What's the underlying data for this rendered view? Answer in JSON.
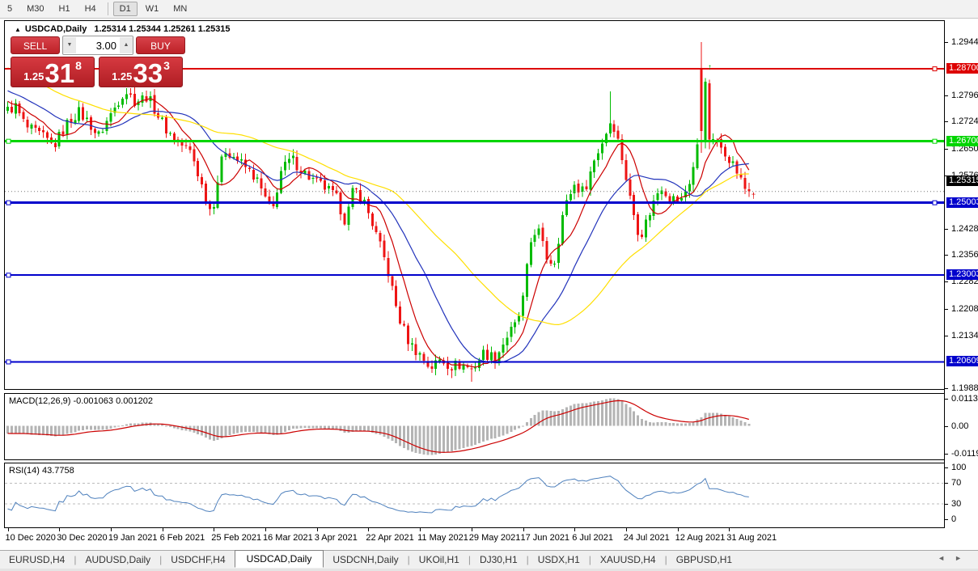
{
  "toolbar": {
    "items": [
      {
        "label": "5"
      },
      {
        "label": "M30"
      },
      {
        "label": "H1"
      },
      {
        "label": "H4"
      },
      {
        "sep": true
      },
      {
        "label": "D1",
        "active": true
      },
      {
        "label": "W1"
      },
      {
        "label": "MN"
      }
    ]
  },
  "header": {
    "collapse_icon": "▲",
    "symbol_title": "USDCAD,Daily",
    "ohlc": "1.25314 1.25344 1.25261 1.25315"
  },
  "trade": {
    "sell_label": "SELL",
    "buy_label": "BUY",
    "volume": "3.00",
    "spinner_down": "▼",
    "spinner_up": "▲",
    "sell_price": {
      "prefix": "1.25",
      "big": "31",
      "sup": "8"
    },
    "buy_price": {
      "prefix": "1.25",
      "big": "33",
      "sup": "3"
    }
  },
  "chart_data": {
    "type": "candlestick",
    "symbol": "USDCAD",
    "timeframe": "Daily",
    "ylim": {
      "top": 1.3002,
      "bottom": 1.1986
    },
    "candle_count": 188,
    "pre_candles": 45,
    "pre_trend": {
      "from": 1.2992,
      "to": 1.2765
    },
    "close_anchors": [
      [
        0.0,
        1.2755
      ],
      [
        0.01,
        1.2768
      ],
      [
        0.025,
        1.2708
      ],
      [
        0.045,
        1.2686
      ],
      [
        0.062,
        1.2656
      ],
      [
        0.08,
        1.2718
      ],
      [
        0.095,
        1.2752
      ],
      [
        0.11,
        1.2722
      ],
      [
        0.122,
        1.2682
      ],
      [
        0.14,
        1.2748
      ],
      [
        0.158,
        1.2812
      ],
      [
        0.172,
        1.278
      ],
      [
        0.188,
        1.2795
      ],
      [
        0.203,
        1.2742
      ],
      [
        0.215,
        1.27
      ],
      [
        0.232,
        1.2665
      ],
      [
        0.248,
        1.2638
      ],
      [
        0.262,
        1.2548
      ],
      [
        0.275,
        1.247
      ],
      [
        0.285,
        1.258
      ],
      [
        0.293,
        1.265
      ],
      [
        0.305,
        1.2628
      ],
      [
        0.32,
        1.26
      ],
      [
        0.335,
        1.2568
      ],
      [
        0.349,
        1.2505
      ],
      [
        0.357,
        1.2472
      ],
      [
        0.368,
        1.2585
      ],
      [
        0.383,
        1.2622
      ],
      [
        0.398,
        1.2588
      ],
      [
        0.413,
        1.256
      ],
      [
        0.428,
        1.2542
      ],
      [
        0.443,
        1.2515
      ],
      [
        0.456,
        1.2448
      ],
      [
        0.467,
        1.2542
      ],
      [
        0.48,
        1.2508
      ],
      [
        0.494,
        1.2432
      ],
      [
        0.511,
        1.2328
      ],
      [
        0.527,
        1.2188
      ],
      [
        0.542,
        1.2112
      ],
      [
        0.556,
        1.2082
      ],
      [
        0.57,
        1.2044
      ],
      [
        0.584,
        1.2068
      ],
      [
        0.598,
        1.205
      ],
      [
        0.612,
        1.2054
      ],
      [
        0.627,
        1.204
      ],
      [
        0.642,
        1.2086
      ],
      [
        0.658,
        1.2072
      ],
      [
        0.673,
        1.213
      ],
      [
        0.687,
        1.2166
      ],
      [
        0.697,
        1.2248
      ],
      [
        0.704,
        1.2382
      ],
      [
        0.714,
        1.2438
      ],
      [
        0.726,
        1.2352
      ],
      [
        0.737,
        1.233
      ],
      [
        0.749,
        1.2468
      ],
      [
        0.763,
        1.2552
      ],
      [
        0.777,
        1.253
      ],
      [
        0.791,
        1.2615
      ],
      [
        0.805,
        1.2682
      ],
      [
        0.815,
        1.2735
      ],
      [
        0.827,
        1.2645
      ],
      [
        0.84,
        1.2508
      ],
      [
        0.853,
        1.2405
      ],
      [
        0.867,
        1.2478
      ],
      [
        0.881,
        1.255
      ],
      [
        0.894,
        1.2513
      ],
      [
        0.909,
        1.2506
      ],
      [
        0.921,
        1.2565
      ],
      [
        0.93,
        1.2638
      ],
      [
        0.936,
        1.2835
      ],
      [
        0.941,
        1.2828
      ],
      [
        0.949,
        1.2692
      ],
      [
        0.957,
        1.2663
      ],
      [
        0.967,
        1.2645
      ],
      [
        0.976,
        1.2618
      ],
      [
        0.985,
        1.2582
      ],
      [
        0.993,
        1.2542
      ],
      [
        1.0,
        1.25315
      ]
    ],
    "specials": {
      "112": {
        "l": 1.2016
      },
      "117": {
        "l": 1.2006
      },
      "152": {
        "h": 1.2808
      },
      "175": {
        "o": 1.2868,
        "h": 1.2944,
        "l": 1.2638,
        "c": 1.2698
      },
      "176": {
        "o": 1.2672,
        "h": 1.2845,
        "l": 1.265,
        "c": 1.2834
      },
      "177": {
        "o": 1.283,
        "h": 1.284,
        "l": 1.2648,
        "c": 1.2675
      },
      "187": {
        "c": 1.25315
      }
    },
    "colors": {
      "up": "#00bb00",
      "down": "#ee1414"
    },
    "ma_lines": [
      {
        "period": 8,
        "color": "#cc0000"
      },
      {
        "period": 20,
        "color": "#2233bb"
      },
      {
        "period": 45,
        "color": "#ffdf00"
      }
    ],
    "hlines": [
      {
        "v": 1.287,
        "label": "1.28700",
        "color": "#dd0000",
        "width": 2,
        "handles": [
          "right"
        ]
      },
      {
        "v": 1.267,
        "label": "1.26700",
        "color": "#00d500",
        "width": 3,
        "handles": [
          "left",
          "right"
        ]
      },
      {
        "v": 1.25003,
        "label": "1.25003",
        "color": "#0000cc",
        "width": 3,
        "handles": [
          "left",
          "right"
        ]
      },
      {
        "v": 1.23003,
        "label": "1.23003",
        "color": "#0000cc",
        "width": 2,
        "handles": [
          "left"
        ]
      },
      {
        "v": 1.20609,
        "label": "1.20609",
        "color": "#0000cc",
        "width": 2,
        "handles": [
          "left"
        ]
      }
    ],
    "current_price": {
      "value": 1.25315,
      "label": "1.25315",
      "chip_color": "#000000"
    },
    "markers": [
      {
        "index": 187,
        "price": 1.2512,
        "glyph": "†",
        "color": "#dd0000"
      },
      {
        "index": 176,
        "price": 1.2868,
        "glyph": "↑",
        "color": "#00aa00"
      }
    ],
    "y_ticks": [
      "1.29440",
      "1.27960",
      "1.27240",
      "1.26500",
      "1.25760",
      "1.24280",
      "1.23560",
      "1.22820",
      "1.22080",
      "1.21340",
      "1.19880"
    ],
    "x_labels": [
      "10 Dec 2020",
      "30 Dec 2020",
      "19 Jan 2021",
      "6 Feb 2021",
      "25 Feb 2021",
      "16 Mar 2021",
      "3 Apr 2021",
      "22 Apr 2021",
      "11 May 2021",
      "29 May 2021",
      "17 Jun 2021",
      "6 Jul 2021",
      "24 Jul 2021",
      "12 Aug 2021",
      "31 Aug 2021"
    ],
    "x_tick_indices": [
      0,
      13,
      26,
      39,
      52,
      65,
      78,
      91,
      104,
      117,
      130,
      143,
      156,
      169,
      182
    ],
    "macd": {
      "label": "MACD(12,26,9) -0.001063 0.001202",
      "params": [
        12,
        26,
        9
      ],
      "ylim": 0.0135,
      "axis": [
        {
          "v": 0.01135,
          "t": "0.01135"
        },
        {
          "v": 0,
          "t": "0.00"
        },
        {
          "v": -0.0119,
          "t": "-0.01190"
        }
      ],
      "bar_color": "#b4b4b4",
      "signal_color": "#cc0000"
    },
    "rsi": {
      "label": "RSI(14) 43.7758",
      "period": 14,
      "levels": [
        70,
        30
      ],
      "axis": [
        {
          "v": 100,
          "t": "100"
        },
        {
          "v": 70,
          "t": "70"
        },
        {
          "v": 30,
          "t": "30"
        },
        {
          "v": 0,
          "t": "0"
        }
      ],
      "line_color": "#4f81bd",
      "level_color": "#bbbbbb"
    }
  },
  "tabs": {
    "items": [
      "EURUSD,H4",
      "AUDUSD,Daily",
      "USDCHF,H4",
      "USDCAD,Daily",
      "USDCNH,Daily",
      "UKOil,H1",
      "DJ30,H1",
      "USDX,H1",
      "XAUUSD,H4",
      "GBPUSD,H1"
    ],
    "active": "USDCAD,Daily",
    "scroll_left": "◄",
    "scroll_right": "►"
  }
}
